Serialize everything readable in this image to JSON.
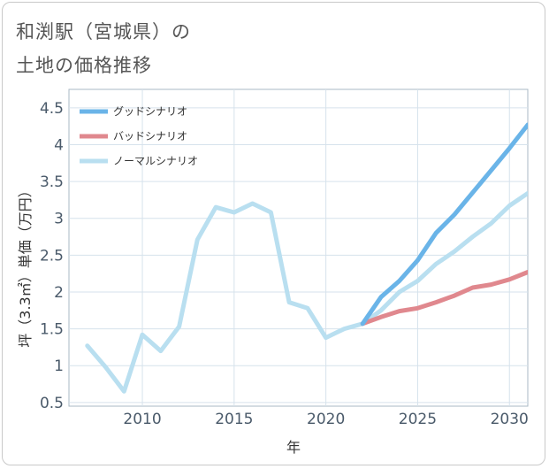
{
  "chart_data": {
    "type": "line",
    "title_line1": "和渕駅（宮城県）の",
    "title_line2": "土地の価格推移",
    "xlabel": "年",
    "ylabel": "坪（3.3㎡）単価（万円）",
    "xlim": [
      2006,
      2031
    ],
    "ylim": [
      0.45,
      4.75
    ],
    "xticks": [
      2010,
      2015,
      2020,
      2025,
      2030
    ],
    "yticks": [
      0.5,
      1,
      1.5,
      2,
      2.5,
      3,
      3.5,
      4,
      4.5
    ],
    "ytick_labels": [
      "0.5",
      "1",
      "1.5",
      "2",
      "2.5",
      "3",
      "3.5",
      "4",
      "4.5"
    ],
    "legend_position": "top-left",
    "series": [
      {
        "name": "グッドシナリオ",
        "color": "#6ab4e8",
        "x": [
          2022,
          2023,
          2024,
          2025,
          2026,
          2027,
          2028,
          2029,
          2030,
          2031
        ],
        "y": [
          1.57,
          1.93,
          2.15,
          2.43,
          2.8,
          3.05,
          3.35,
          3.65,
          3.95,
          4.27
        ]
      },
      {
        "name": "バッドシナリオ",
        "color": "#e0888e",
        "x": [
          2022,
          2023,
          2024,
          2025,
          2026,
          2027,
          2028,
          2029,
          2030,
          2031
        ],
        "y": [
          1.57,
          1.66,
          1.74,
          1.78,
          1.86,
          1.95,
          2.06,
          2.1,
          2.17,
          2.27
        ]
      },
      {
        "name": "ノーマルシナリオ",
        "color": "#b9dff0",
        "x": [
          2007,
          2008,
          2009,
          2010,
          2011,
          2012,
          2013,
          2014,
          2015,
          2016,
          2017,
          2018,
          2019,
          2020,
          2021,
          2022,
          2023,
          2024,
          2025,
          2026,
          2027,
          2028,
          2029,
          2030,
          2031
        ],
        "y": [
          1.27,
          0.98,
          0.65,
          1.42,
          1.2,
          1.53,
          2.71,
          3.15,
          3.08,
          3.2,
          3.08,
          1.86,
          1.78,
          1.38,
          1.5,
          1.57,
          1.75,
          2.0,
          2.15,
          2.38,
          2.55,
          2.75,
          2.93,
          3.17,
          3.34
        ]
      }
    ]
  }
}
